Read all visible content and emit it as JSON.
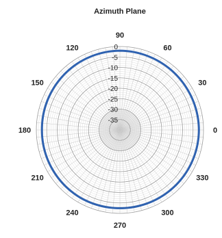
{
  "chart_data": {
    "type": "line",
    "polar": true,
    "title": "Azimuth Plane",
    "r_range": [
      -40,
      0
    ],
    "radial_ticks": [
      "0",
      "-5",
      "-10",
      "-15",
      "-20",
      "-25",
      "-30",
      "-35"
    ],
    "radial_tick_values": [
      0,
      -5,
      -10,
      -15,
      -20,
      -25,
      -30,
      -35
    ],
    "angle_ticks": [
      "0",
      "30",
      "60",
      "90",
      "120",
      "150",
      "180",
      "210",
      "240",
      "270",
      "300",
      "330"
    ],
    "angle_tick_values": [
      0,
      30,
      60,
      90,
      120,
      150,
      180,
      210,
      240,
      270,
      300,
      330
    ],
    "angle_unit": "deg",
    "grid": true,
    "series": [
      {
        "color": "#2f62b0",
        "angles": [
          0,
          30,
          60,
          90,
          120,
          150,
          180,
          210,
          240,
          270,
          300,
          330
        ],
        "values": [
          -2.2,
          -2.3,
          -2.2,
          -2.0,
          -2.2,
          -2.5,
          -2.7,
          -2.6,
          -2.4,
          -2.5,
          -2.4,
          -2.3
        ]
      }
    ]
  }
}
